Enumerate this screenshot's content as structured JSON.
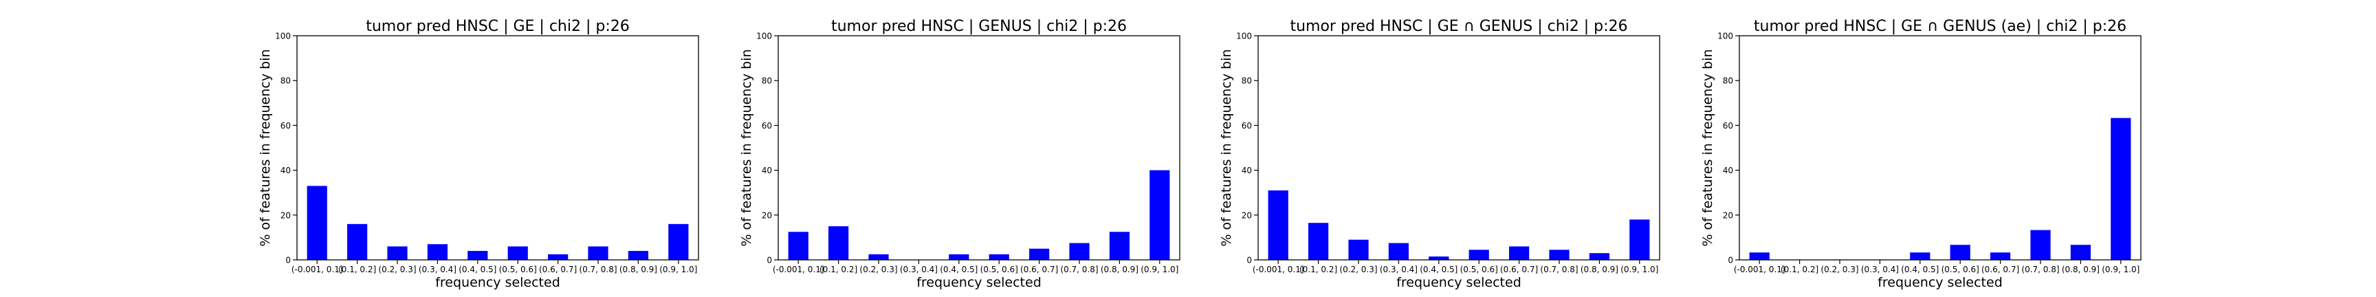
{
  "colors": {
    "bar": "#0000ff",
    "background": "#ffffff",
    "axes": "#000000"
  },
  "chart_data": [
    {
      "type": "bar",
      "title": "tumor pred HNSC | GE | chi2 | p:26",
      "xlabel": "frequency selected",
      "ylabel": "% of features in frequency bin",
      "ylim": [
        0,
        100
      ],
      "yticks": [
        0,
        20,
        40,
        60,
        80,
        100
      ],
      "grid": false,
      "categories": [
        "(-0.001, 0.1]",
        "(0.1, 0.2]",
        "(0.2, 0.3]",
        "(0.3, 0.4]",
        "(0.4, 0.5]",
        "(0.5, 0.6]",
        "(0.6, 0.7]",
        "(0.7, 0.8]",
        "(0.8, 0.9]",
        "(0.9, 1.0]"
      ],
      "values": [
        33,
        16,
        6,
        7,
        4,
        6,
        2.5,
        6,
        4,
        16
      ]
    },
    {
      "type": "bar",
      "title": "tumor pred HNSC | GENUS | chi2 | p:26",
      "xlabel": "frequency selected",
      "ylabel": "% of features in frequency bin",
      "ylim": [
        0,
        100
      ],
      "yticks": [
        0,
        20,
        40,
        60,
        80,
        100
      ],
      "grid": false,
      "categories": [
        "(-0.001, 0.1]",
        "(0.1, 0.2]",
        "(0.2, 0.3]",
        "(0.3, 0.4]",
        "(0.4, 0.5]",
        "(0.5, 0.6]",
        "(0.6, 0.7]",
        "(0.7, 0.8]",
        "(0.8, 0.9]",
        "(0.9, 1.0]"
      ],
      "values": [
        12.5,
        15,
        2.5,
        0,
        2.5,
        2.5,
        5,
        7.5,
        12.5,
        40
      ]
    },
    {
      "type": "bar",
      "title": "tumor pred HNSC | GE ∩ GENUS | chi2 | p:26",
      "xlabel": "frequency selected",
      "ylabel": "% of features in frequency bin",
      "ylim": [
        0,
        100
      ],
      "yticks": [
        0,
        20,
        40,
        60,
        80,
        100
      ],
      "grid": false,
      "categories": [
        "(-0.001, 0.1]",
        "(0.1, 0.2]",
        "(0.2, 0.3]",
        "(0.3, 0.4]",
        "(0.4, 0.5]",
        "(0.5, 0.6]",
        "(0.6, 0.7]",
        "(0.7, 0.8]",
        "(0.8, 0.9]",
        "(0.9, 1.0]"
      ],
      "values": [
        31,
        16.5,
        9,
        7.5,
        1.5,
        4.5,
        6,
        4.5,
        3,
        18
      ]
    },
    {
      "type": "bar",
      "title": "tumor pred HNSC | GE ∩ GENUS (ae) | chi2 | p:26",
      "xlabel": "frequency selected",
      "ylabel": "% of features in frequency bin",
      "ylim": [
        0,
        100
      ],
      "yticks": [
        0,
        20,
        40,
        60,
        80,
        100
      ],
      "grid": false,
      "categories": [
        "(-0.001, 0.1]",
        "(0.1, 0.2]",
        "(0.2, 0.3]",
        "(0.3, 0.4]",
        "(0.4, 0.5]",
        "(0.5, 0.6]",
        "(0.6, 0.7]",
        "(0.7, 0.8]",
        "(0.8, 0.9]",
        "(0.9, 1.0]"
      ],
      "values": [
        3.3,
        0,
        0,
        0,
        3.3,
        6.7,
        3.3,
        13.3,
        6.7,
        63.3
      ]
    }
  ]
}
